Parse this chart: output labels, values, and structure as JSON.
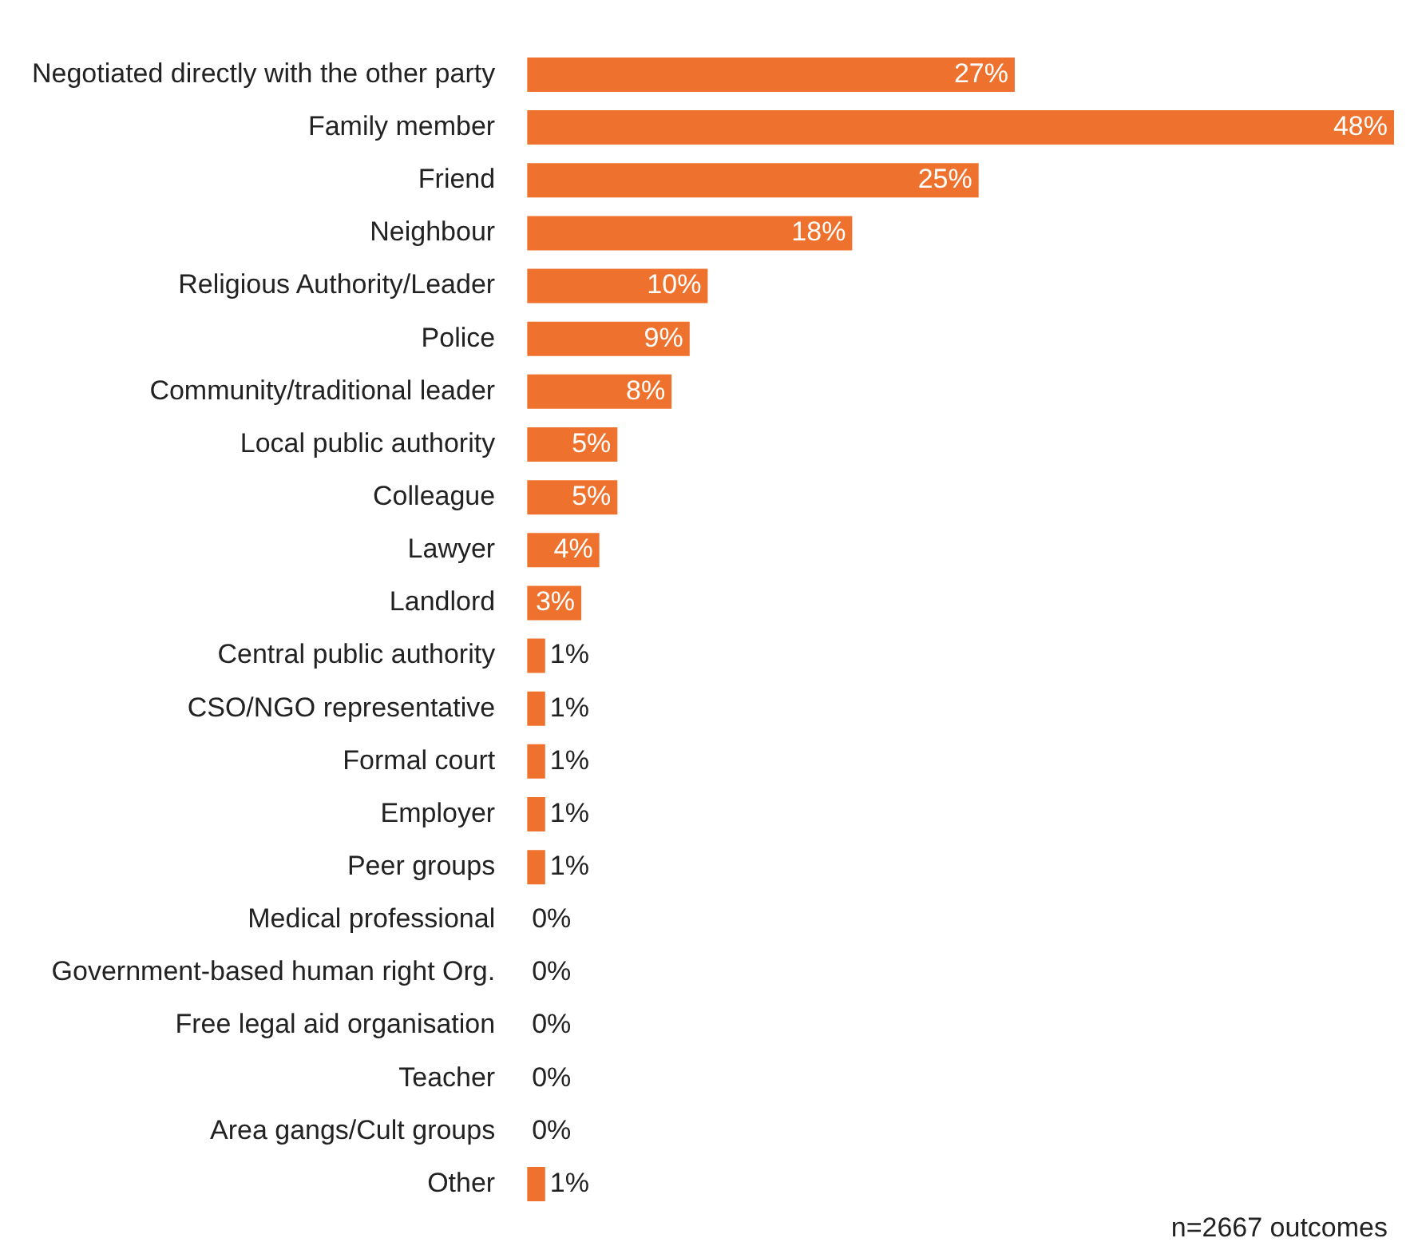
{
  "chart_data": {
    "type": "bar",
    "orientation": "horizontal",
    "categories": [
      "Negotiated directly with the other party",
      "Family member",
      "Friend",
      "Neighbour",
      "Religious Authority/Leader",
      "Police",
      "Community/traditional leader",
      "Local public authority",
      "Colleague",
      "Lawyer",
      "Landlord",
      "Central public authority",
      "CSO/NGO representative",
      "Formal court",
      "Employer",
      "Peer groups",
      "Medical professional",
      "Government-based human right Org.",
      "Free legal aid organisation",
      "Teacher",
      "Area gangs/Cult groups",
      "Other"
    ],
    "values": [
      27,
      48,
      25,
      18,
      10,
      9,
      8,
      5,
      5,
      4,
      3,
      1,
      1,
      1,
      1,
      1,
      0,
      0,
      0,
      0,
      0,
      1
    ],
    "value_labels": [
      "27%",
      "48%",
      "25%",
      "18%",
      "10%",
      "9%",
      "8%",
      "5%",
      "5%",
      "4%",
      "3%",
      "1%",
      "1%",
      "1%",
      "1%",
      "1%",
      "0%",
      "0%",
      "0%",
      "0%",
      "0%",
      "1%"
    ],
    "color": "#ee722d",
    "xlim": [
      0,
      48
    ],
    "tick_labels": "y",
    "legend": false,
    "annotations": [
      "n=2667 outcomes"
    ]
  }
}
